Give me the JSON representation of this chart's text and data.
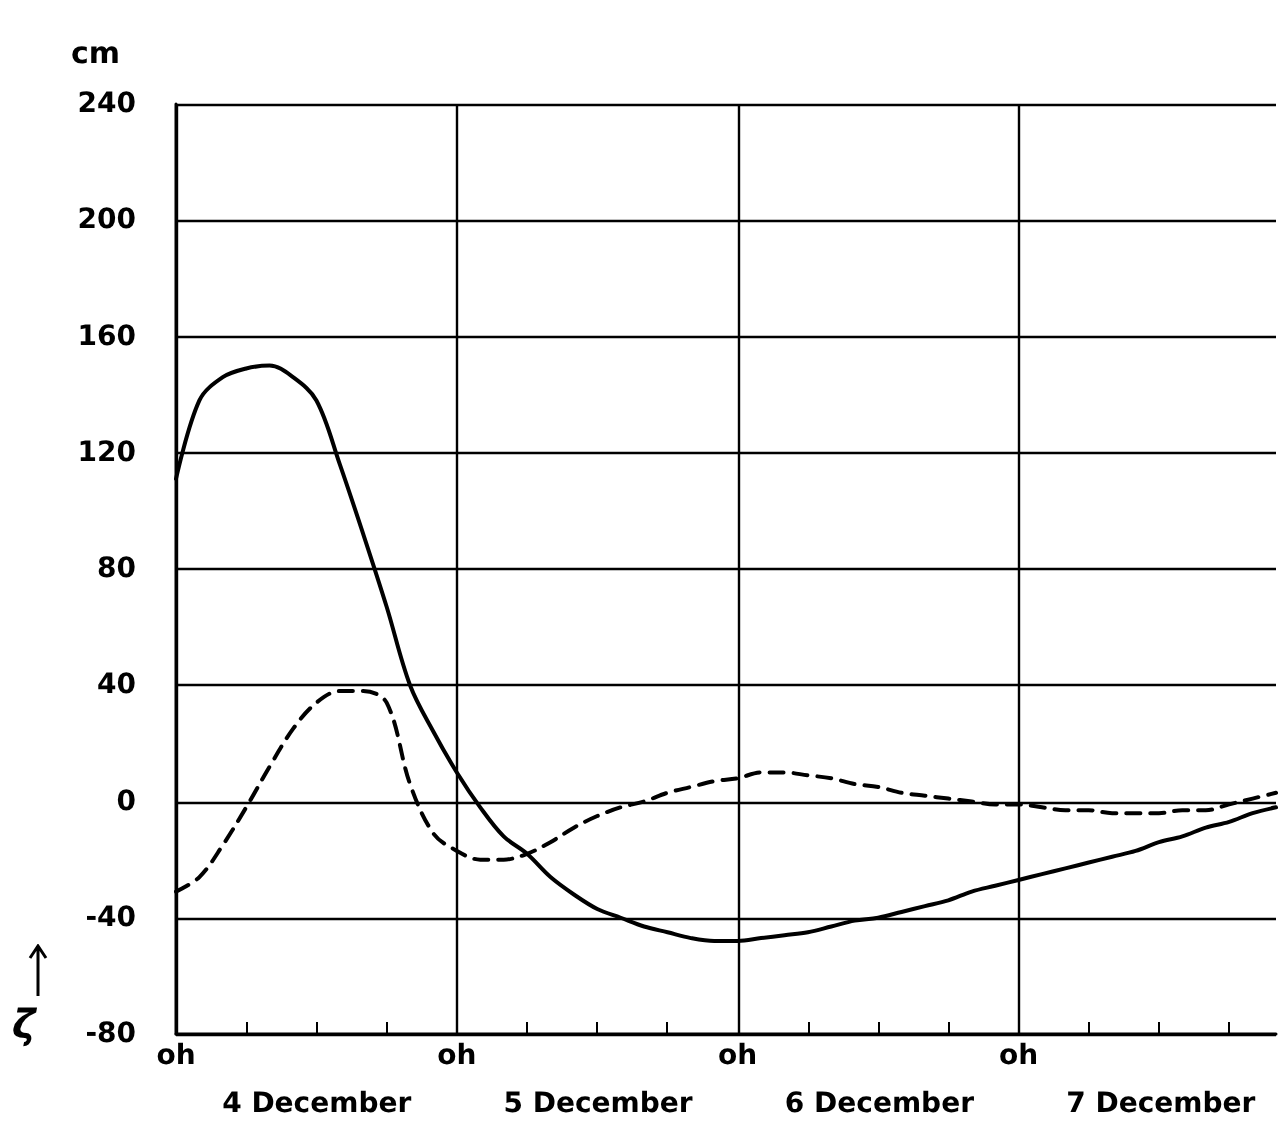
{
  "chart_data": {
    "type": "line",
    "ylabel": "cm",
    "annotations": [
      "ζ",
      "4 December",
      "5 December",
      "6 December",
      "7 December"
    ],
    "categories": [
      "oh",
      null,
      null,
      null,
      null,
      null,
      null,
      null,
      null,
      null,
      null,
      null,
      "oh",
      null,
      null,
      null,
      null,
      null,
      null,
      null,
      null,
      null,
      null,
      null,
      "oh",
      null,
      null,
      null,
      null,
      null,
      null,
      null,
      null,
      null,
      null,
      null,
      "oh",
      null,
      null,
      null,
      null,
      null,
      null,
      null,
      null,
      null,
      null,
      null
    ],
    "ylim": [
      -80,
      240
    ],
    "yticks": [
      -80,
      -40,
      0,
      40,
      80,
      120,
      160,
      200,
      240
    ],
    "grid": true,
    "marker": "none",
    "series": [
      {
        "color": "#000000",
        "line_style": "solid",
        "values": [
          111,
          138,
          146,
          149,
          150,
          146,
          138,
          116,
          92,
          67,
          40,
          24,
          10,
          -2,
          -12,
          -18,
          -26,
          -32,
          -37,
          -40,
          -43,
          -45,
          -47,
          -48,
          -48,
          -47,
          -46,
          -45,
          -43,
          -41,
          -40,
          -38,
          -36,
          -34,
          -31,
          -29,
          -27,
          -25,
          -23,
          -21,
          -19,
          -17,
          -14,
          -12,
          -9,
          -7,
          -4,
          -2
        ]
      },
      {
        "color": "#000000",
        "line_style": "dashed",
        "values": [
          -31,
          -26,
          -15,
          -2,
          12,
          25,
          34,
          38,
          38,
          34,
          6,
          -11,
          -17,
          -20,
          -20,
          -18,
          -14,
          -9,
          -5,
          -2,
          0,
          3,
          5,
          7,
          8,
          10,
          10,
          9,
          8,
          6,
          5,
          3,
          2,
          1,
          0,
          -1,
          -1,
          -2,
          -3,
          -3,
          -4,
          -4,
          -4,
          -3,
          -3,
          -1,
          1,
          3
        ]
      }
    ]
  }
}
